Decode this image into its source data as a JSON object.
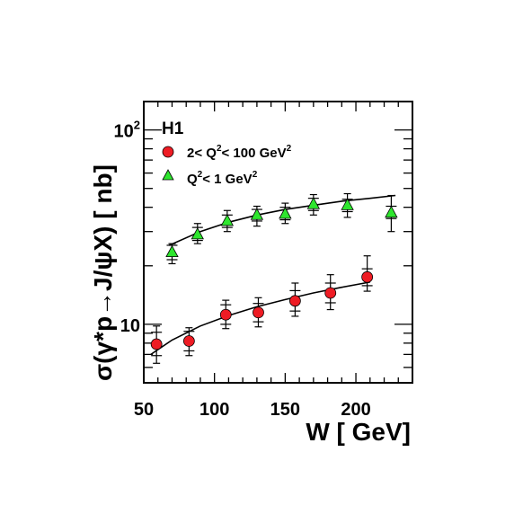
{
  "chart_data": {
    "type": "scatter",
    "experiment_label": "H1",
    "xlabel": "W [ GeV]",
    "ylabel": "σ(γ*p→J/ψX) [ nb]",
    "x_scale": "linear",
    "y_scale": "log",
    "xlim": [
      50,
      240
    ],
    "ylim": [
      5,
      140
    ],
    "x_ticks": [
      50,
      100,
      150,
      200
    ],
    "y_tick_labels": [
      {
        "value": 10,
        "base": "10",
        "exp": ""
      },
      {
        "value": 100,
        "base": "10",
        "exp": "2"
      }
    ],
    "legend_position": "top-left",
    "series": [
      {
        "legend": {
          "prefix": "2< Q",
          "mid": "< 100 GeV",
          "sup1": "2",
          "sup2": "2"
        },
        "marker": "circle",
        "color": "#ee1c24",
        "x": [
          59,
          82,
          108,
          131,
          157,
          182,
          208
        ],
        "y": [
          7.9,
          8.2,
          11.2,
          11.5,
          13.2,
          14.5,
          17.5
        ],
        "err_inner_up": [
          9.1,
          9.2,
          12.6,
          12.8,
          14.9,
          16.3,
          19.3
        ],
        "err_inner_down": [
          6.9,
          7.3,
          10.0,
          10.3,
          11.7,
          12.9,
          15.8
        ],
        "err_outer_up": [
          9.8,
          9.6,
          13.3,
          13.7,
          16.3,
          18.0,
          22.5
        ],
        "err_outer_down": [
          6.3,
          6.9,
          9.5,
          9.7,
          11.0,
          11.9,
          14.8
        ],
        "fit_x": [
          55,
          70,
          90,
          110,
          130,
          150,
          170,
          190,
          210
        ],
        "fit_y": [
          7.0,
          8.3,
          9.8,
          11.1,
          12.3,
          13.4,
          14.5,
          15.5,
          16.5
        ]
      },
      {
        "legend": {
          "prefix": "Q",
          "mid": "< 1 GeV",
          "sup1": "2",
          "sup2": "2"
        },
        "marker": "triangle",
        "color": "#2ee62e",
        "x": [
          70,
          88,
          109,
          130,
          150,
          170,
          194,
          225
        ],
        "y": [
          23.5,
          29.0,
          34.0,
          36.5,
          37.0,
          41.5,
          41.0,
          37.5
        ],
        "err_inner_up": [
          25.5,
          31.5,
          36.5,
          39.0,
          40.0,
          44.5,
          44.0,
          40.5
        ],
        "err_inner_down": [
          21.5,
          27.0,
          31.5,
          34.0,
          34.5,
          38.5,
          38.0,
          35.0
        ],
        "err_outer_up": [
          26.0,
          33.0,
          38.5,
          40.5,
          42.0,
          46.5,
          47.0,
          46.0
        ],
        "err_outer_down": [
          20.5,
          26.0,
          30.0,
          32.0,
          33.0,
          36.5,
          35.5,
          30.0
        ],
        "fit_x": [
          68,
          90,
          110,
          130,
          150,
          170,
          190,
          210,
          228
        ],
        "fit_y": [
          25.5,
          30.0,
          33.5,
          36.5,
          39.0,
          41.0,
          43.0,
          44.5,
          46.0
        ]
      }
    ]
  }
}
